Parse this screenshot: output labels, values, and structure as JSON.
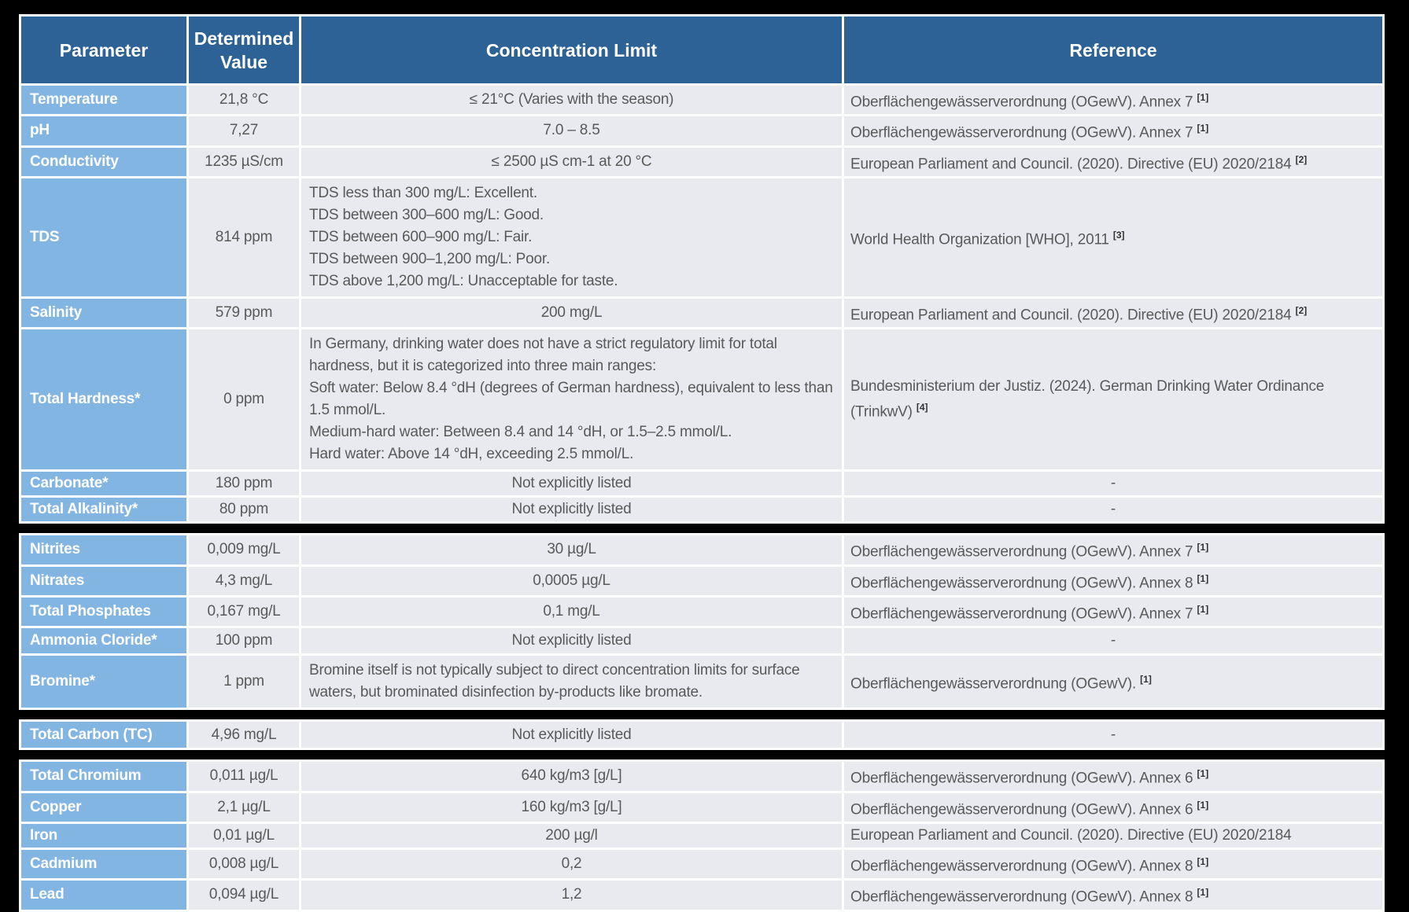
{
  "colors": {
    "header_bg": "#2D6296",
    "parameter_bg": "#83B5E2",
    "row_bg": "#E9EAF0",
    "body_text": "#595959",
    "header_text": "#FFFFFF",
    "frame_bg": "#000000"
  },
  "table": {
    "columns": [
      "Parameter",
      "Determined Value",
      "Concentration Limit",
      "Reference"
    ],
    "sections": [
      {
        "rows": [
          {
            "parameter": "Temperature",
            "value": "21,8 °C",
            "limit": "≤ 21°C (Varies with the season)",
            "reference": "Oberflächengewässerverordnung (OGewV). Annex 7",
            "reference_sup": "[1]"
          },
          {
            "parameter": "pH",
            "value": "7,27",
            "limit": "7.0 – 8.5",
            "reference": "Oberflächengewässerverordnung (OGewV). Annex 7",
            "reference_sup": "[1]"
          },
          {
            "parameter": "Conductivity",
            "value": "1235 µS/cm",
            "limit": "≤ 2500 µS cm-1 at 20 °C",
            "reference": "European Parliament and Council. (2020). Directive (EU) 2020/2184",
            "reference_sup": "[2]"
          },
          {
            "parameter": "TDS",
            "value": "814 ppm",
            "limit_lines": [
              "TDS less than 300 mg/L: Excellent.",
              "TDS between 300–600 mg/L: Good.",
              "TDS between 600–900 mg/L: Fair.",
              "TDS between 900–1,200 mg/L: Poor.",
              "TDS above 1,200 mg/L: Unacceptable for taste."
            ],
            "reference": "World Health Organization [WHO], 2011",
            "reference_sup": "[3]"
          },
          {
            "parameter": "Salinity",
            "value": "579 ppm",
            "limit": "200 mg/L",
            "reference": "European Parliament and Council. (2020). Directive (EU) 2020/2184",
            "reference_sup": "[2]"
          },
          {
            "parameter": "Total Hardness*",
            "value": "0 ppm",
            "limit_lines": [
              "In Germany, drinking water does not have a strict regulatory limit for total hardness, but it is categorized into three main ranges:",
              "Soft water: Below 8.4 °dH (degrees of German hardness), equivalent to less than 1.5 mmol/L.",
              "Medium-hard water: Between 8.4 and 14 °dH, or 1.5–2.5 mmol/L.",
              "Hard water: Above 14 °dH, exceeding 2.5 mmol/L."
            ],
            "reference": "Bundesministerium der Justiz. (2024). German Drinking Water Ordinance (TrinkwV)",
            "reference_sup": "[4]"
          },
          {
            "parameter": "Carbonate*",
            "value": "180 ppm",
            "limit": "Not explicitly listed",
            "reference": "-"
          },
          {
            "parameter": "Total Alkalinity*",
            "value": "80 ppm",
            "limit": "Not explicitly listed",
            "reference": "-"
          }
        ]
      },
      {
        "rows": [
          {
            "parameter": "Nitrites",
            "value": "0,009 mg/L",
            "limit": "30 µg/L",
            "reference": "Oberflächengewässerverordnung (OGewV). Annex 7",
            "reference_sup": "[1]"
          },
          {
            "parameter": "Nitrates",
            "value": "4,3 mg/L",
            "limit": "0,0005 µg/L",
            "reference": "Oberflächengewässerverordnung (OGewV). Annex 8",
            "reference_sup": "[1]"
          },
          {
            "parameter": "Total Phosphates",
            "value": "0,167 mg/L",
            "limit": "0,1 mg/L",
            "reference": "Oberflächengewässerverordnung (OGewV). Annex 7",
            "reference_sup": "[1]"
          },
          {
            "parameter": "Ammonia Cloride*",
            "value": "100 ppm",
            "limit": "Not explicitly listed",
            "reference": "-"
          },
          {
            "parameter": "Bromine*",
            "value": "1 ppm",
            "limit_lines": [
              "Bromine itself is not typically subject to direct concentration limits for surface waters, but brominated disinfection by-products like bromate."
            ],
            "reference": "Oberflächengewässerverordnung (OGewV).",
            "reference_sup": "[1]"
          }
        ]
      },
      {
        "rows": [
          {
            "parameter": "Total Carbon (TC)",
            "value": "4,96 mg/L",
            "limit": "Not explicitly listed",
            "reference": "-"
          }
        ]
      },
      {
        "rows": [
          {
            "parameter": "Total Chromium",
            "value": "0,011 µg/L",
            "limit": "640 kg/m3 [g/L]",
            "reference": "Oberflächengewässerverordnung (OGewV). Annex 6",
            "reference_sup": "[1]"
          },
          {
            "parameter": "Copper",
            "value": "2,1 µg/L",
            "limit": "160 kg/m3 [g/L]",
            "reference": "Oberflächengewässerverordnung (OGewV). Annex 6",
            "reference_sup": "[1]"
          },
          {
            "parameter": "Iron",
            "value": "0,01 µg/L",
            "limit": "200 µg/l",
            "reference": "European Parliament and Council. (2020). Directive (EU) 2020/2184",
            "reference_sup": ""
          },
          {
            "parameter": "Cadmium",
            "value": "0,008 µg/L",
            "limit": "0,2",
            "reference": "Oberflächengewässerverordnung (OGewV). Annex 8",
            "reference_sup": "[1]"
          },
          {
            "parameter": "Lead",
            "value": "0,094 µg/L",
            "limit": "1,2",
            "reference": "Oberflächengewässerverordnung (OGewV). Annex 8",
            "reference_sup": "[1]"
          }
        ]
      }
    ]
  }
}
